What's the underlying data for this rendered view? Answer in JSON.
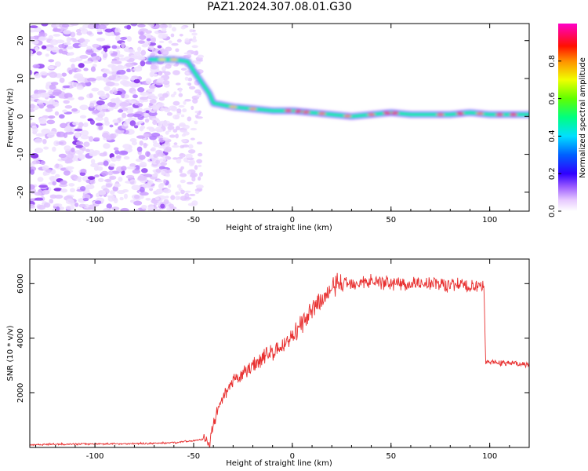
{
  "title": "PAZ1.2024.307.08.01.G30",
  "colors": {
    "snr_line": "#e83030",
    "noise": "#8a2be2",
    "colormap": [
      "#ffffff",
      "#e6c8ff",
      "#b070ff",
      "#6a00ff",
      "#0000ff",
      "#00c8ff",
      "#00ff80",
      "#80ff00",
      "#ffff00",
      "#ff8000",
      "#ff0000",
      "#ff00c8"
    ]
  },
  "chart_data": [
    {
      "type": "heatmap",
      "title": "",
      "xlabel": "Height of straight line (km)",
      "ylabel": "Frequency (Hz)",
      "xlim": [
        -133,
        120
      ],
      "ylim": [
        -25,
        24.5
      ],
      "xticks": [
        -100,
        -50,
        0,
        50,
        100
      ],
      "yticks": [
        -20,
        -10,
        0,
        10,
        20
      ],
      "xtick_labels": [
        "-100",
        "-50",
        "0",
        "50",
        "100"
      ],
      "ytick_labels": [
        "-20",
        "-10",
        "0",
        "10",
        "20"
      ],
      "ridge": {
        "name": "",
        "x": [
          -72,
          -60,
          -53,
          -50,
          -46,
          -42,
          -40,
          -35,
          -30,
          -20,
          -10,
          0,
          10,
          20,
          30,
          40,
          50,
          60,
          70,
          80,
          90,
          100,
          110,
          120
        ],
        "y": [
          15,
          15,
          14.5,
          12,
          9,
          6,
          3.5,
          3,
          2.5,
          2,
          1.5,
          1.5,
          1,
          0.5,
          0,
          0.5,
          1,
          0.5,
          0.5,
          0.5,
          1,
          0.5,
          0.5,
          0.5
        ]
      },
      "colorbar": {
        "label": "Normalized spectral amplitude",
        "range": [
          0,
          1
        ],
        "ticks": [
          0.0,
          0.2,
          0.4,
          0.6,
          0.8
        ],
        "tick_labels": [
          "0.0",
          "0.2",
          "0.4",
          "0.6",
          "0.8"
        ]
      }
    },
    {
      "type": "line",
      "title": "",
      "xlabel": "Height of straight line (km)",
      "ylabel": "SNR (10 * v/v)",
      "xlim": [
        -133,
        120
      ],
      "ylim": [
        0,
        6900
      ],
      "xticks": [
        -100,
        -50,
        0,
        50,
        100
      ],
      "yticks": [
        2000,
        4000,
        6000
      ],
      "xtick_labels": [
        "-100",
        "-50",
        "0",
        "50",
        "100"
      ],
      "ytick_labels": [
        "2000",
        "4000",
        "6000"
      ],
      "series": [
        {
          "name": "",
          "x": [
            -133,
            -120,
            -100,
            -80,
            -70,
            -60,
            -50,
            -45,
            -42,
            -40,
            -38,
            -35,
            -30,
            -25,
            -20,
            -15,
            -10,
            -5,
            0,
            5,
            10,
            15,
            20,
            22,
            25,
            30,
            35,
            40,
            45,
            50,
            55,
            60,
            65,
            70,
            75,
            80,
            85,
            90,
            95,
            97,
            98,
            100,
            105,
            110,
            115,
            120
          ],
          "y": [
            100,
            120,
            130,
            140,
            150,
            180,
            250,
            300,
            200,
            800,
            1300,
            1800,
            2400,
            2700,
            3000,
            3300,
            3500,
            3700,
            4100,
            4500,
            5000,
            5400,
            5800,
            5950,
            6000,
            6050,
            6050,
            6100,
            6050,
            6050,
            6000,
            6000,
            6000,
            6000,
            6000,
            5950,
            5950,
            5900,
            5850,
            5850,
            3100,
            3150,
            3100,
            3100,
            3050,
            3050
          ]
        }
      ]
    }
  ]
}
